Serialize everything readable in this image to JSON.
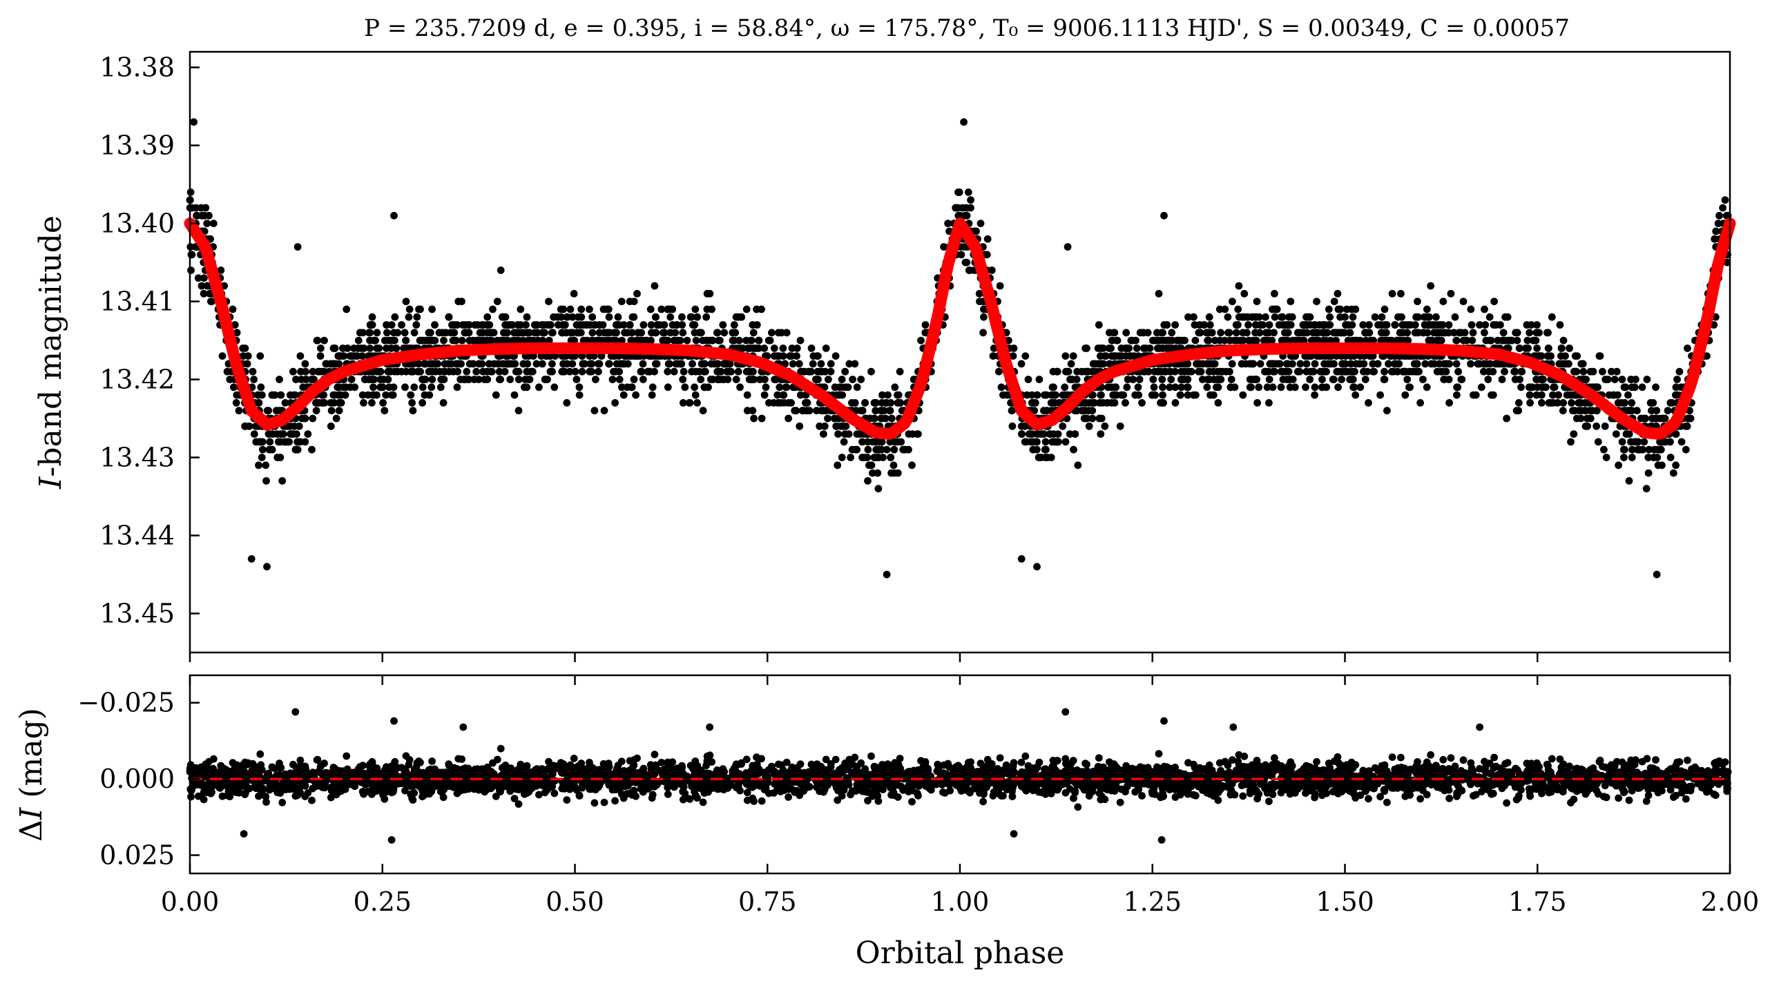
{
  "chart_data": [
    {
      "type": "scatter",
      "panel": "light-curve",
      "title": "P = 235.7209 d, e = 0.395, i = 58.84°, ω = 175.78°, T₀ = 9006.1113 HJD', S = 0.00349, C = 0.00057",
      "xlabel": "",
      "ylabel": "I-band magnitude",
      "ylabel_parts": {
        "italic": "I",
        "rest": "-band magnitude"
      },
      "xlim": [
        0.0,
        2.0
      ],
      "ylim": [
        13.455,
        13.378
      ],
      "y_inverted": true,
      "yticks": [
        13.38,
        13.39,
        13.4,
        13.41,
        13.42,
        13.43,
        13.44,
        13.45
      ],
      "ytick_labels": [
        "13.38",
        "13.39",
        "13.40",
        "13.41",
        "13.42",
        "13.43",
        "13.44",
        "13.45"
      ],
      "xticks": [
        0.0,
        0.25,
        0.5,
        0.75,
        1.0,
        1.25,
        1.5,
        1.75,
        2.0
      ],
      "grid": false,
      "series": [
        {
          "kind": "observed-points",
          "color": "#000000",
          "phase_mag": [
            [
              0.0,
              13.395
            ],
            [
              0.005,
              13.388
            ],
            [
              0.01,
              13.398
            ],
            [
              0.015,
              13.4
            ],
            [
              0.02,
              13.405
            ],
            [
              0.03,
              13.408
            ],
            [
              0.04,
              13.405
            ],
            [
              0.05,
              13.41
            ],
            [
              0.06,
              13.416
            ],
            [
              0.07,
              13.42
            ],
            [
              0.08,
              13.424
            ],
            [
              0.09,
              13.428
            ],
            [
              0.1,
              13.43
            ],
            [
              0.11,
              13.427
            ],
            [
              0.12,
              13.432
            ],
            [
              0.13,
              13.425
            ],
            [
              0.14,
              13.42
            ],
            [
              0.15,
              13.418
            ],
            [
              0.17,
              13.422
            ],
            [
              0.19,
              13.42
            ],
            [
              0.2,
              13.419
            ],
            [
              0.22,
              13.416
            ],
            [
              0.24,
              13.418
            ],
            [
              0.26,
              13.415
            ],
            [
              0.28,
              13.414
            ],
            [
              0.3,
              13.417
            ],
            [
              0.32,
              13.413
            ],
            [
              0.34,
              13.418
            ],
            [
              0.36,
              13.415
            ],
            [
              0.38,
              13.412
            ],
            [
              0.4,
              13.418
            ],
            [
              0.42,
              13.416
            ],
            [
              0.44,
              13.414
            ],
            [
              0.46,
              13.419
            ],
            [
              0.48,
              13.413
            ],
            [
              0.5,
              13.417
            ],
            [
              0.52,
              13.415
            ],
            [
              0.54,
              13.418
            ],
            [
              0.56,
              13.414
            ],
            [
              0.58,
              13.416
            ],
            [
              0.6,
              13.419
            ],
            [
              0.62,
              13.414
            ],
            [
              0.64,
              13.417
            ],
            [
              0.66,
              13.415
            ],
            [
              0.68,
              13.418
            ],
            [
              0.7,
              13.416
            ],
            [
              0.72,
              13.419
            ],
            [
              0.74,
              13.417
            ],
            [
              0.76,
              13.42
            ],
            [
              0.78,
              13.419
            ],
            [
              0.8,
              13.421
            ],
            [
              0.82,
              13.423
            ],
            [
              0.84,
              13.421
            ],
            [
              0.86,
              13.424
            ],
            [
              0.88,
              13.426
            ],
            [
              0.9,
              13.428
            ],
            [
              0.91,
              13.43
            ],
            [
              0.92,
              13.426
            ],
            [
              0.94,
              13.423
            ],
            [
              0.96,
              13.418
            ],
            [
              0.98,
              13.408
            ],
            [
              0.99,
              13.402
            ],
            [
              1.0,
              13.395
            ],
            [
              1.005,
              13.388
            ],
            [
              1.01,
              13.398
            ],
            [
              1.02,
              13.404
            ],
            [
              1.03,
              13.406
            ],
            [
              1.04,
              13.41
            ],
            [
              1.05,
              13.414
            ],
            [
              1.06,
              13.418
            ],
            [
              1.07,
              13.423
            ],
            [
              1.08,
              13.426
            ],
            [
              1.1,
              13.429
            ],
            [
              1.12,
              13.427
            ],
            [
              1.14,
              13.424
            ],
            [
              1.16,
              13.421
            ],
            [
              1.18,
              13.42
            ],
            [
              1.2,
              13.418
            ],
            [
              1.22,
              13.417
            ],
            [
              1.24,
              13.416
            ],
            [
              1.26,
              13.418
            ],
            [
              1.28,
              13.415
            ],
            [
              1.3,
              13.417
            ],
            [
              1.32,
              13.414
            ],
            [
              1.34,
              13.416
            ],
            [
              1.36,
              13.418
            ],
            [
              1.38,
              13.413
            ],
            [
              1.4,
              13.417
            ],
            [
              1.42,
              13.415
            ],
            [
              1.44,
              13.418
            ],
            [
              1.46,
              13.414
            ],
            [
              1.48,
              13.416
            ],
            [
              1.5,
              13.419
            ],
            [
              1.52,
              13.415
            ],
            [
              1.54,
              13.417
            ],
            [
              1.56,
              13.414
            ],
            [
              1.58,
              13.418
            ],
            [
              1.6,
              13.416
            ],
            [
              1.62,
              13.415
            ],
            [
              1.64,
              13.418
            ],
            [
              1.66,
              13.416
            ],
            [
              1.68,
              13.417
            ],
            [
              1.7,
              13.419
            ],
            [
              1.72,
              13.418
            ],
            [
              1.74,
              13.42
            ],
            [
              1.76,
              13.419
            ],
            [
              1.78,
              13.421
            ],
            [
              1.8,
              13.422
            ],
            [
              1.82,
              13.421
            ],
            [
              1.84,
              13.424
            ],
            [
              1.86,
              13.425
            ],
            [
              1.88,
              13.427
            ],
            [
              1.9,
              13.429
            ],
            [
              1.91,
              13.431
            ],
            [
              1.92,
              13.427
            ],
            [
              1.94,
              13.424
            ],
            [
              1.96,
              13.419
            ],
            [
              1.98,
              13.409
            ],
            [
              1.99,
              13.403
            ],
            [
              2.0,
              13.398
            ]
          ],
          "outliers": [
            [
              0.005,
              13.387
            ],
            [
              0.08,
              13.443
            ],
            [
              0.1,
              13.444
            ],
            [
              0.265,
              13.399
            ],
            [
              0.905,
              13.445
            ],
            [
              1.005,
              13.387
            ],
            [
              1.08,
              13.443
            ],
            [
              1.1,
              13.444
            ],
            [
              1.265,
              13.399
            ],
            [
              1.905,
              13.445
            ],
            [
              0.14,
              13.403
            ],
            [
              1.14,
              13.403
            ]
          ]
        },
        {
          "kind": "model-curve",
          "color": "#ff0000",
          "phase_mag": [
            [
              0.0,
              13.4
            ],
            [
              0.02,
              13.403
            ],
            [
              0.04,
              13.41
            ],
            [
              0.06,
              13.418
            ],
            [
              0.08,
              13.424
            ],
            [
              0.1,
              13.4258
            ],
            [
              0.12,
              13.4252
            ],
            [
              0.14,
              13.4235
            ],
            [
              0.16,
              13.4215
            ],
            [
              0.18,
              13.42
            ],
            [
              0.2,
              13.419
            ],
            [
              0.25,
              13.4175
            ],
            [
              0.3,
              13.4168
            ],
            [
              0.35,
              13.4163
            ],
            [
              0.4,
              13.4161
            ],
            [
              0.45,
              13.416
            ],
            [
              0.5,
              13.416
            ],
            [
              0.55,
              13.416
            ],
            [
              0.6,
              13.4161
            ],
            [
              0.65,
              13.4163
            ],
            [
              0.7,
              13.4168
            ],
            [
              0.74,
              13.4178
            ],
            [
              0.78,
              13.4195
            ],
            [
              0.82,
              13.422
            ],
            [
              0.86,
              13.425
            ],
            [
              0.89,
              13.4268
            ],
            [
              0.91,
              13.427
            ],
            [
              0.93,
              13.4255
            ],
            [
              0.95,
              13.4205
            ],
            [
              0.97,
              13.4125
            ],
            [
              0.985,
              13.405
            ],
            [
              1.0,
              13.4
            ],
            [
              1.02,
              13.403
            ],
            [
              1.04,
              13.41
            ],
            [
              1.06,
              13.418
            ],
            [
              1.08,
              13.424
            ],
            [
              1.1,
              13.4258
            ],
            [
              1.12,
              13.4252
            ],
            [
              1.14,
              13.4235
            ],
            [
              1.16,
              13.4215
            ],
            [
              1.18,
              13.42
            ],
            [
              1.2,
              13.419
            ],
            [
              1.25,
              13.4175
            ],
            [
              1.3,
              13.4168
            ],
            [
              1.35,
              13.4163
            ],
            [
              1.4,
              13.4161
            ],
            [
              1.45,
              13.416
            ],
            [
              1.5,
              13.416
            ],
            [
              1.55,
              13.416
            ],
            [
              1.6,
              13.4161
            ],
            [
              1.65,
              13.4163
            ],
            [
              1.7,
              13.4168
            ],
            [
              1.74,
              13.4178
            ],
            [
              1.78,
              13.4195
            ],
            [
              1.82,
              13.422
            ],
            [
              1.86,
              13.425
            ],
            [
              1.89,
              13.4268
            ],
            [
              1.91,
              13.427
            ],
            [
              1.93,
              13.4255
            ],
            [
              1.95,
              13.4205
            ],
            [
              1.97,
              13.4125
            ],
            [
              1.985,
              13.405
            ],
            [
              2.0,
              13.4
            ]
          ]
        }
      ]
    },
    {
      "type": "scatter",
      "panel": "residuals",
      "xlabel": "Orbital phase",
      "ylabel": "ΔI (mag)",
      "ylabel_parts": {
        "delta": "Δ",
        "italic": "I",
        "rest": " (mag)"
      },
      "xlim": [
        0.0,
        2.0
      ],
      "ylim": [
        0.031,
        -0.034
      ],
      "y_inverted": true,
      "yticks": [
        -0.025,
        0.0,
        0.025
      ],
      "ytick_labels": [
        "−0.025",
        "0.000",
        "0.025"
      ],
      "xticks": [
        0.0,
        0.25,
        0.5,
        0.75,
        1.0,
        1.25,
        1.5,
        1.75,
        2.0
      ],
      "xtick_labels": [
        "0.00",
        "0.25",
        "0.50",
        "0.75",
        "1.00",
        "1.25",
        "1.50",
        "1.75",
        "2.00"
      ],
      "grid": false,
      "reference_line": {
        "y": 0.0,
        "color": "#ff0000",
        "style": "dashed"
      },
      "series": [
        {
          "kind": "residual-points",
          "color": "#000000",
          "scatter_sd": 0.0055,
          "outliers": [
            [
              0.137,
              -0.022
            ],
            [
              0.265,
              -0.019
            ],
            [
              0.355,
              -0.017
            ],
            [
              0.675,
              -0.017
            ],
            [
              1.137,
              -0.022
            ],
            [
              1.265,
              -0.019
            ],
            [
              1.355,
              -0.017
            ],
            [
              1.675,
              -0.017
            ],
            [
              0.262,
              0.02
            ],
            [
              1.262,
              0.02
            ],
            [
              0.07,
              0.018
            ],
            [
              1.07,
              0.018
            ]
          ]
        }
      ]
    }
  ]
}
